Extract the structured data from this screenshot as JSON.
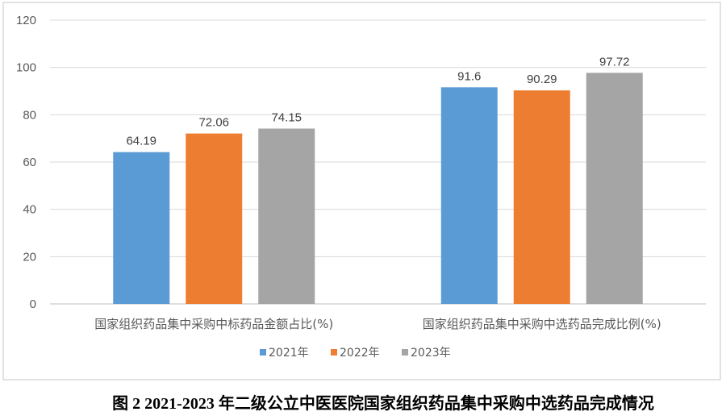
{
  "chart_data": {
    "type": "bar",
    "categories": [
      "国家组织药品集中采购中标药品金额占比(%)",
      "国家组织药品集中采购中选药品完成比例(%)"
    ],
    "series": [
      {
        "name": "2021年",
        "values": [
          64.19,
          91.6
        ],
        "labels": [
          "64.19",
          "91.6"
        ],
        "color": "#5B9BD5"
      },
      {
        "name": "2022年",
        "values": [
          72.06,
          90.29
        ],
        "labels": [
          "72.06",
          "90.29"
        ],
        "color": "#ED7D31"
      },
      {
        "name": "2023年",
        "values": [
          74.15,
          97.72
        ],
        "labels": [
          "74.15",
          "97.72"
        ],
        "color": "#A5A5A5"
      }
    ],
    "ylim": [
      0,
      120
    ],
    "yticks": [
      0,
      20,
      40,
      60,
      80,
      100,
      120
    ],
    "grid": true,
    "legend_position": "bottom",
    "title": "",
    "xlabel": "",
    "ylabel": ""
  },
  "caption": "图 2 2021-2023 年二级公立中医医院国家组织药品集中采购中选药品完成情况"
}
